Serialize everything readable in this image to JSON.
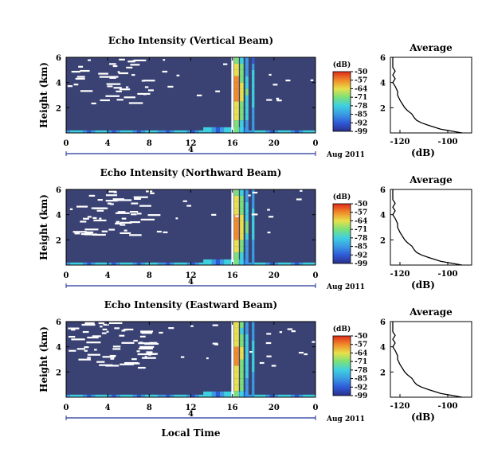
{
  "chart_data": {
    "type": "heatmap",
    "xlabel": "Local Time",
    "date_label": "Aug 2011",
    "day_label": "4",
    "xticks": [
      "0",
      "4",
      "8",
      "12",
      "16",
      "20",
      "0"
    ],
    "xlim_hours": [
      0,
      24
    ],
    "ylabel": "Height (km)",
    "yticks": [
      "6",
      "4",
      "2"
    ],
    "ylim_km": [
      0,
      6
    ],
    "colorbar": {
      "unit": "(dB)",
      "range": [
        -99,
        -50
      ],
      "ticks": [
        "-50",
        "-57",
        "-64",
        "-71",
        "-78",
        "-85",
        "-92",
        "-99"
      ]
    },
    "profile": {
      "title": "Average",
      "xlabel": "(dB)",
      "xticks": [
        "-120",
        "-100"
      ],
      "xlim": [
        -124,
        -90
      ],
      "yticks": [
        "6",
        "4",
        "2"
      ],
      "ylim_km": [
        0,
        6
      ],
      "height_km": [
        0.0,
        0.3,
        0.6,
        0.8,
        1.0,
        1.2,
        1.5,
        1.8,
        2.0,
        2.3,
        2.6,
        3.0,
        3.3,
        3.7,
        4.0,
        4.3,
        4.6,
        4.9,
        5.2,
        5.5,
        5.8,
        6.0
      ],
      "values_db": [
        -94,
        -103,
        -108,
        -111,
        -113,
        -114,
        -115,
        -117,
        -118,
        -119,
        -120,
        -121,
        -121,
        -122,
        -123,
        -122,
        -123,
        -122,
        -123,
        -123,
        -123,
        -123
      ]
    },
    "panels": [
      {
        "title": "Echo Intensity (Vertical Beam)",
        "gap_fraction": 0.1
      },
      {
        "title": "Echo Intensity (Northward Beam)",
        "gap_fraction": 0.12
      },
      {
        "title": "Echo Intensity (Eastward Beam)",
        "gap_fraction": 0.15
      }
    ],
    "colors": {
      "background": "#3a4273",
      "colormap": [
        "#2a2f8a",
        "#2f5ad8",
        "#3a9be3",
        "#3fd0e0",
        "#7be07a",
        "#e8e04a",
        "#f08a2a",
        "#e02a1a"
      ],
      "gap": "#ffffff"
    }
  }
}
